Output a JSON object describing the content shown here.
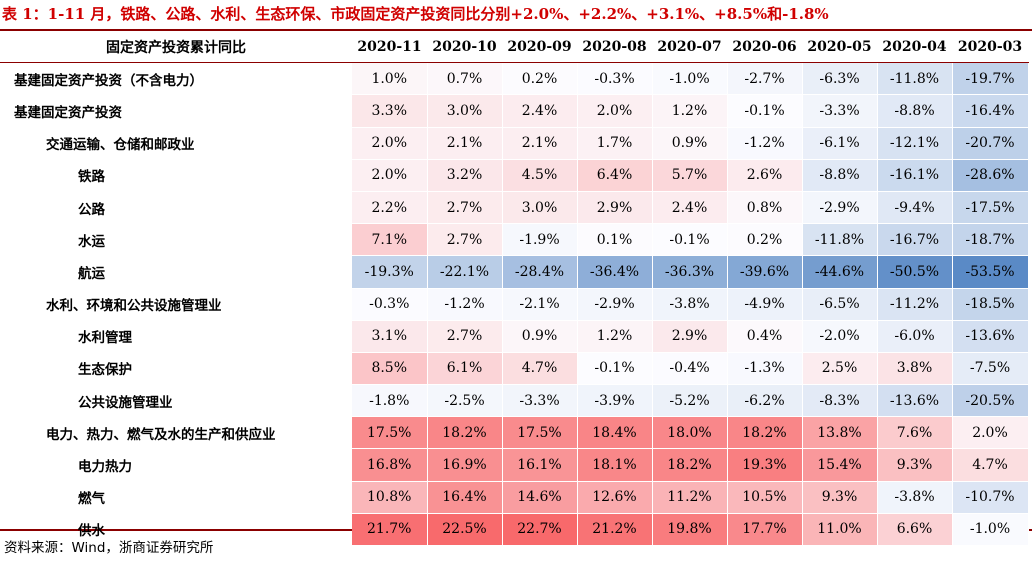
{
  "title": "表 1：1-11 月，铁路、公路、水利、生态环保、市政固定资产投资同比分别+2.0%、+2.2%、+3.1%、+8.5%和-1.8%",
  "source": "资料来源：Wind，浙商证券研究所",
  "chart_data": {
    "type": "heatmap",
    "row_header": "固定资产投资累计同比",
    "columns": [
      "2020-11",
      "2020-10",
      "2020-09",
      "2020-08",
      "2020-07",
      "2020-06",
      "2020-05",
      "2020-04",
      "2020-03"
    ],
    "colors": {
      "positive": "#f8696b",
      "neutral": "#fcfcff",
      "negative": "#5a8ac6"
    },
    "rows": [
      {
        "label": "基建固定资产投资（不含电力）",
        "level": 0,
        "values": [
          1.0,
          0.7,
          0.2,
          -0.3,
          -1.0,
          -2.7,
          -6.3,
          -11.8,
          -19.7
        ]
      },
      {
        "label": "基建固定资产投资",
        "level": 0,
        "values": [
          3.3,
          3.0,
          2.4,
          2.0,
          1.2,
          -0.1,
          -3.3,
          -8.8,
          -16.4
        ]
      },
      {
        "label": "交通运输、仓储和邮政业",
        "level": 1,
        "values": [
          2.0,
          2.1,
          2.1,
          1.7,
          0.9,
          -1.2,
          -6.1,
          -12.1,
          -20.7
        ]
      },
      {
        "label": "铁路",
        "level": 2,
        "values": [
          2.0,
          3.2,
          4.5,
          6.4,
          5.7,
          2.6,
          -8.8,
          -16.1,
          -28.6
        ]
      },
      {
        "label": "公路",
        "level": 2,
        "values": [
          2.2,
          2.7,
          3.0,
          2.9,
          2.4,
          0.8,
          -2.9,
          -9.4,
          -17.5
        ]
      },
      {
        "label": "水运",
        "level": 2,
        "values": [
          7.1,
          2.7,
          -1.9,
          0.1,
          -0.1,
          0.2,
          -11.8,
          -16.7,
          -18.7
        ]
      },
      {
        "label": "航运",
        "level": 2,
        "values": [
          -19.3,
          -22.1,
          -28.4,
          -36.4,
          -36.3,
          -39.6,
          -44.6,
          -50.5,
          -53.5
        ]
      },
      {
        "label": "水利、环境和公共设施管理业",
        "level": 1,
        "values": [
          -0.3,
          -1.2,
          -2.1,
          -2.9,
          -3.8,
          -4.9,
          -6.5,
          -11.2,
          -18.5
        ]
      },
      {
        "label": "水利管理",
        "level": 2,
        "values": [
          3.1,
          2.7,
          0.9,
          1.2,
          2.9,
          0.4,
          -2.0,
          -6.0,
          -13.6
        ]
      },
      {
        "label": "生态保护",
        "level": 2,
        "values": [
          8.5,
          6.1,
          4.7,
          -0.1,
          -0.4,
          -1.3,
          2.5,
          3.8,
          -7.5
        ]
      },
      {
        "label": "公共设施管理业",
        "level": 2,
        "values": [
          -1.8,
          -2.5,
          -3.3,
          -3.9,
          -5.2,
          -6.2,
          -8.3,
          -13.6,
          -20.5
        ]
      },
      {
        "label": "电力、热力、燃气及水的生产和供应业",
        "level": 1,
        "values": [
          17.5,
          18.2,
          17.5,
          18.4,
          18.0,
          18.2,
          13.8,
          7.6,
          2.0
        ]
      },
      {
        "label": "电力热力",
        "level": 2,
        "values": [
          16.8,
          16.9,
          16.1,
          18.1,
          18.2,
          19.3,
          15.4,
          9.3,
          4.7
        ]
      },
      {
        "label": "燃气",
        "level": 2,
        "values": [
          10.8,
          16.4,
          14.6,
          12.6,
          11.2,
          10.5,
          9.3,
          -3.8,
          -10.7
        ]
      },
      {
        "label": "供水",
        "level": 2,
        "values": [
          21.7,
          22.5,
          22.7,
          21.2,
          19.8,
          17.7,
          11.0,
          6.6,
          -1.0
        ]
      }
    ]
  }
}
